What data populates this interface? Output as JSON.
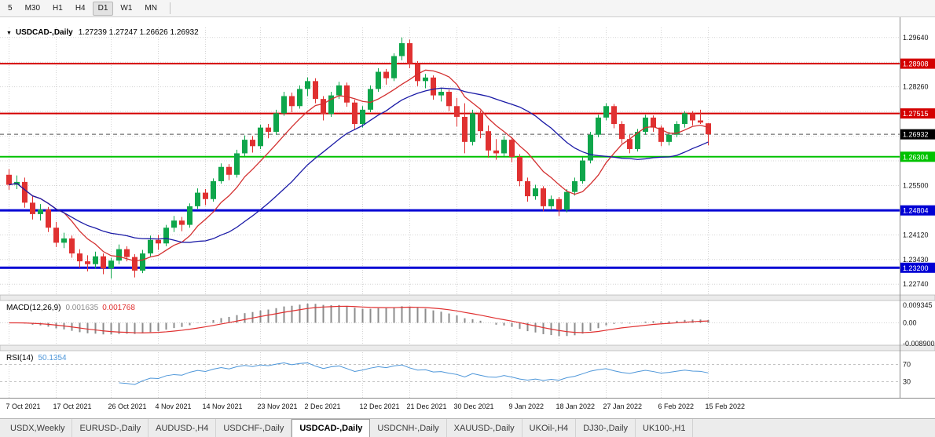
{
  "toolbar": {
    "timeframes": [
      "5",
      "M30",
      "H1",
      "H4",
      "D1",
      "W1",
      "MN"
    ],
    "active_timeframe": "D1"
  },
  "chart": {
    "arrow": "▼",
    "symbol_title": "USDCAD-,Daily",
    "ohlc_text": "1.27239 1.27247 1.26626 1.26932"
  },
  "macd_panel": {
    "label": "MACD(12,26,9)",
    "value_main": "0.001635",
    "value_signal": "0.001768",
    "axis_max": "0.009345",
    "axis_zero": "0.00",
    "axis_min": "-0.008900"
  },
  "rsi_panel": {
    "label": "RSI(14)",
    "value": "50.1354",
    "level_high": "70",
    "level_low": "30"
  },
  "tabs": {
    "items": [
      "USDX,Weekly",
      "EURUSD-,Daily",
      "AUDUSD-,H4",
      "USDCHF-,Daily",
      "USDCAD-,Daily",
      "USDCNH-,Daily",
      "XAUUSD-,Daily",
      "UKOil-,H4",
      "DJ30-,Daily",
      "UK100-,H1"
    ],
    "active": "USDCAD-,Daily"
  },
  "chart_data": {
    "type": "candlestick",
    "symbol": "USDCAD-",
    "timeframe": "Daily",
    "ohlc_current": {
      "open": 1.27239,
      "high": 1.27247,
      "low": 1.26626,
      "close": 1.26932
    },
    "y_range": [
      1.2246,
      1.2992
    ],
    "price_axis": {
      "start": 1.2964,
      "step": 0.0069,
      "count": 11,
      "decimals": 5
    },
    "levels": [
      {
        "price": 1.28908,
        "label": "1.28908",
        "color": "#d40000",
        "width": 2
      },
      {
        "price": 1.27515,
        "label": "1.27515",
        "color": "#d40000",
        "width": 2
      },
      {
        "price": 1.26304,
        "label": "1.26304",
        "color": "#00c200",
        "width": 2
      },
      {
        "price": 1.24804,
        "label": "1.24804",
        "color": "#0000d4",
        "width": 3
      },
      {
        "price": 1.232,
        "label": "1.23200",
        "color": "#0000d4",
        "width": 3
      }
    ],
    "current_price": {
      "price": 1.26932,
      "label": "1.26932",
      "color": "#000000"
    },
    "dates": [
      "7 Oct 2021",
      "17 Oct 2021",
      "26 Oct 2021",
      "4 Nov 2021",
      "14 Nov 2021",
      "23 Nov 2021",
      "2 Dec 2021",
      "12 Dec 2021",
      "21 Dec 2021",
      "30 Dec 2021",
      "9 Jan 2022",
      "18 Jan 2022",
      "27 Jan 2022",
      "6 Feb 2022",
      "15 Feb 2022"
    ],
    "ma": {
      "fast": 8,
      "slow": 21
    },
    "indicators": {
      "macd": [
        12,
        26,
        9
      ],
      "rsi": 14
    },
    "colors": {
      "bull": "#0fa64b",
      "bear": "#e03131",
      "ma_fast": "#d32f2f",
      "ma_slow": "#1a1aa6",
      "macd_hist": "#8c8c8c",
      "macd_signal": "#e03131",
      "rsi": "#4d96d9"
    },
    "candles": [
      [
        1.258,
        1.2596,
        1.2538,
        1.2552
      ],
      [
        1.2552,
        1.2578,
        1.254,
        1.256
      ],
      [
        1.256,
        1.2572,
        1.2488,
        1.2502
      ],
      [
        1.2502,
        1.252,
        1.2455,
        1.247
      ],
      [
        1.247,
        1.2498,
        1.2452,
        1.2483
      ],
      [
        1.2483,
        1.249,
        1.242,
        1.2432
      ],
      [
        1.2432,
        1.2448,
        1.2378,
        1.239
      ],
      [
        1.239,
        1.2418,
        1.2375,
        1.2402
      ],
      [
        1.2402,
        1.241,
        1.2348,
        1.236
      ],
      [
        1.236,
        1.2372,
        1.232,
        1.2338
      ],
      [
        1.2338,
        1.2355,
        1.231,
        1.233
      ],
      [
        1.233,
        1.2365,
        1.2318,
        1.2352
      ],
      [
        1.2352,
        1.236,
        1.2302,
        1.2318
      ],
      [
        1.2318,
        1.2348,
        1.229,
        1.234
      ],
      [
        1.234,
        1.2385,
        1.233,
        1.2372
      ],
      [
        1.2372,
        1.238,
        1.2338,
        1.235
      ],
      [
        1.235,
        1.2358,
        1.2293,
        1.2312
      ],
      [
        1.2312,
        1.237,
        1.2305,
        1.236
      ],
      [
        1.236,
        1.241,
        1.2352,
        1.2398
      ],
      [
        1.2398,
        1.2412,
        1.237,
        1.2388
      ],
      [
        1.2388,
        1.244,
        1.238,
        1.2432
      ],
      [
        1.2432,
        1.2465,
        1.242,
        1.2452
      ],
      [
        1.2452,
        1.2462,
        1.2422,
        1.244
      ],
      [
        1.244,
        1.25,
        1.2432,
        1.2492
      ],
      [
        1.2492,
        1.2542,
        1.2485,
        1.253
      ],
      [
        1.253,
        1.254,
        1.2495,
        1.2512
      ],
      [
        1.2512,
        1.257,
        1.2505,
        1.2562
      ],
      [
        1.2562,
        1.2612,
        1.2555,
        1.2602
      ],
      [
        1.2602,
        1.261,
        1.2565,
        1.258
      ],
      [
        1.258,
        1.265,
        1.2572,
        1.264
      ],
      [
        1.264,
        1.269,
        1.2632,
        1.2678
      ],
      [
        1.2678,
        1.2688,
        1.2642,
        1.266
      ],
      [
        1.266,
        1.272,
        1.2652,
        1.2712
      ],
      [
        1.2712,
        1.2722,
        1.2682,
        1.27
      ],
      [
        1.27,
        1.2762,
        1.2692,
        1.2752
      ],
      [
        1.2752,
        1.2812,
        1.2745,
        1.28
      ],
      [
        1.28,
        1.281,
        1.2755,
        1.2772
      ],
      [
        1.2772,
        1.283,
        1.2765,
        1.282
      ],
      [
        1.282,
        1.2852,
        1.28,
        1.2842
      ],
      [
        1.2842,
        1.285,
        1.278,
        1.2792
      ],
      [
        1.2792,
        1.28,
        1.2732,
        1.275
      ],
      [
        1.275,
        1.2812,
        1.2742,
        1.2802
      ],
      [
        1.2802,
        1.284,
        1.2792,
        1.283
      ],
      [
        1.283,
        1.2838,
        1.277,
        1.2782
      ],
      [
        1.2782,
        1.279,
        1.2705,
        1.2722
      ],
      [
        1.2722,
        1.2772,
        1.2712,
        1.2762
      ],
      [
        1.2762,
        1.283,
        1.2755,
        1.282
      ],
      [
        1.282,
        1.2878,
        1.2812,
        1.2868
      ],
      [
        1.2868,
        1.2876,
        1.2832,
        1.285
      ],
      [
        1.285,
        1.292,
        1.2842,
        1.2912
      ],
      [
        1.2912,
        1.2964,
        1.29,
        1.2948
      ],
      [
        1.2948,
        1.2958,
        1.2878,
        1.289
      ],
      [
        1.289,
        1.2898,
        1.2828,
        1.2842
      ],
      [
        1.2842,
        1.2862,
        1.2822,
        1.2852
      ],
      [
        1.2852,
        1.2858,
        1.279,
        1.2802
      ],
      [
        1.2802,
        1.2822,
        1.2785,
        1.2812
      ],
      [
        1.2812,
        1.2818,
        1.2758,
        1.2772
      ],
      [
        1.2772,
        1.2795,
        1.2715,
        1.2742
      ],
      [
        1.2742,
        1.278,
        1.264,
        1.2672
      ],
      [
        1.2672,
        1.2762,
        1.2662,
        1.2752
      ],
      [
        1.2752,
        1.276,
        1.2682,
        1.2702
      ],
      [
        1.2702,
        1.2718,
        1.2628,
        1.2648
      ],
      [
        1.2648,
        1.268,
        1.2622,
        1.264
      ],
      [
        1.264,
        1.2688,
        1.2632,
        1.2678
      ],
      [
        1.2678,
        1.2685,
        1.2615,
        1.263
      ],
      [
        1.263,
        1.2638,
        1.2548,
        1.2562
      ],
      [
        1.2562,
        1.2572,
        1.2505,
        1.252
      ],
      [
        1.252,
        1.2552,
        1.251,
        1.2542
      ],
      [
        1.2542,
        1.2548,
        1.2478,
        1.2492
      ],
      [
        1.2492,
        1.2522,
        1.2482,
        1.2512
      ],
      [
        1.2512,
        1.2518,
        1.2465,
        1.2482
      ],
      [
        1.2482,
        1.254,
        1.2475,
        1.2532
      ],
      [
        1.2532,
        1.2572,
        1.2522,
        1.2562
      ],
      [
        1.2562,
        1.263,
        1.2555,
        1.262
      ],
      [
        1.262,
        1.27,
        1.2612,
        1.2692
      ],
      [
        1.2692,
        1.2748,
        1.2685,
        1.274
      ],
      [
        1.274,
        1.278,
        1.2732,
        1.2772
      ],
      [
        1.2772,
        1.2778,
        1.271,
        1.2722
      ],
      [
        1.2722,
        1.273,
        1.2668,
        1.268
      ],
      [
        1.268,
        1.2692,
        1.264,
        1.2652
      ],
      [
        1.2652,
        1.2708,
        1.2645,
        1.27
      ],
      [
        1.27,
        1.2748,
        1.2692,
        1.274
      ],
      [
        1.274,
        1.2746,
        1.27,
        1.2712
      ],
      [
        1.2712,
        1.2718,
        1.266,
        1.2672
      ],
      [
        1.2672,
        1.27,
        1.2662,
        1.2692
      ],
      [
        1.2692,
        1.273,
        1.2685,
        1.2722
      ],
      [
        1.2722,
        1.2758,
        1.2712,
        1.2752
      ],
      [
        1.2752,
        1.2758,
        1.2718,
        1.2732
      ],
      [
        1.2732,
        1.2762,
        1.2722,
        1.2726
      ],
      [
        1.27239,
        1.27247,
        1.26626,
        1.26932
      ]
    ]
  }
}
